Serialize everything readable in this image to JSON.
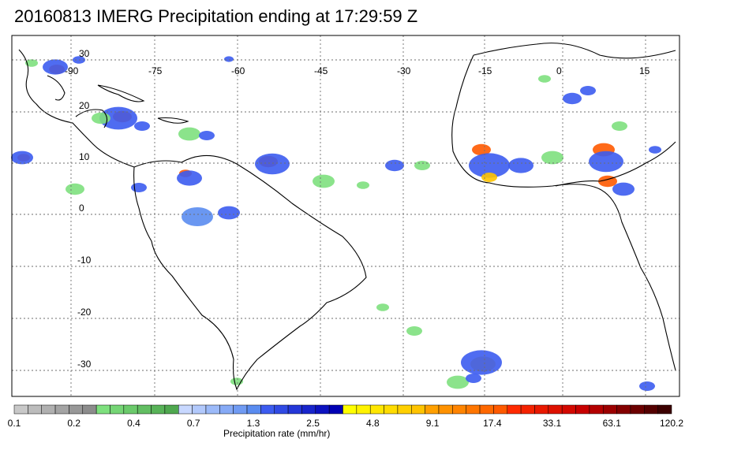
{
  "title": "20160813 IMERG Precipitation ending at 17:29:59 Z",
  "map": {
    "lon_labels": [
      "-90",
      "-75",
      "-60",
      "-45",
      "-30",
      "-15",
      "0",
      "15"
    ],
    "lat_labels": [
      "30",
      "20",
      "10",
      "0",
      "-10",
      "-20",
      "-30"
    ],
    "grid": true,
    "coastline_color": "#000000"
  },
  "colorbar": {
    "title": "Precipitation rate (mm/hr)",
    "labels": [
      "0.1",
      "0.2",
      "0.4",
      "0.7",
      "1.3",
      "2.5",
      "4.8",
      "9.1",
      "17.4",
      "33.1",
      "63.1",
      "120.2"
    ],
    "groups": [
      {
        "n": 6,
        "from": "#c8c8c8",
        "to": "#8c8c8c"
      },
      {
        "n": 6,
        "from": "#7ee07e",
        "to": "#4fa84f"
      },
      {
        "n": 6,
        "from": "#c8d8ff",
        "to": "#5a8cf0"
      },
      {
        "n": 6,
        "from": "#3c5cf0",
        "to": "#0000b4"
      },
      {
        "n": 6,
        "from": "#ffff00",
        "to": "#ffc400"
      },
      {
        "n": 6,
        "from": "#ffa000",
        "to": "#ff5a00"
      },
      {
        "n": 6,
        "from": "#ff2a00",
        "to": "#c80000"
      },
      {
        "n": 6,
        "from": "#b40000",
        "to": "#3c0000"
      }
    ]
  }
}
